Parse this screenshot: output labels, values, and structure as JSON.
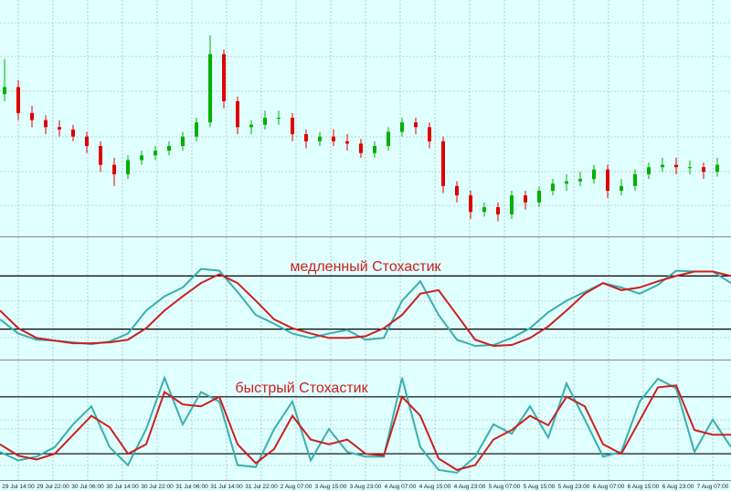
{
  "chart_data": [
    {
      "type": "candlestick",
      "up_color": "#00b000",
      "down_color": "#e00000",
      "ylim": [
        0,
        100
      ],
      "open": [
        60,
        63,
        52,
        49,
        46,
        45,
        42,
        38,
        30,
        26,
        32,
        34,
        36,
        38,
        42,
        48,
        77,
        57,
        46,
        47,
        50,
        50,
        43,
        40,
        42,
        40,
        39,
        35,
        38,
        44,
        48,
        46,
        40,
        21,
        17,
        10,
        12,
        9,
        17,
        14,
        19,
        22,
        23,
        24,
        28,
        19,
        21,
        26,
        29,
        30,
        29,
        29,
        27
      ],
      "high": [
        75,
        66,
        55,
        51,
        49,
        47,
        44,
        40,
        33,
        34,
        36,
        38,
        40,
        44,
        50,
        85,
        79,
        59,
        49,
        53,
        53,
        52,
        45,
        44,
        45,
        43,
        41,
        40,
        46,
        50,
        50,
        48,
        42,
        23,
        19,
        14,
        14,
        19,
        19,
        21,
        24,
        26,
        27,
        30,
        30,
        24,
        28,
        31,
        33,
        33,
        32,
        31,
        33
      ],
      "low": [
        57,
        49,
        46,
        43,
        42,
        40,
        35,
        27,
        21,
        24,
        30,
        32,
        34,
        36,
        40,
        46,
        54,
        43,
        43,
        45,
        47,
        40,
        37,
        38,
        38,
        36,
        33,
        33,
        36,
        42,
        43,
        37,
        18,
        14,
        7,
        8,
        6,
        7,
        11,
        12,
        17,
        19,
        21,
        22,
        16,
        17,
        19,
        24,
        27,
        26,
        26,
        24,
        25
      ],
      "close": [
        63,
        52,
        49,
        46,
        45,
        42,
        38,
        30,
        26,
        32,
        34,
        36,
        38,
        42,
        48,
        77,
        57,
        46,
        47,
        50,
        50,
        43,
        40,
        42,
        40,
        39,
        35,
        38,
        44,
        48,
        46,
        40,
        21,
        17,
        10,
        12,
        9,
        17,
        14,
        19,
        22,
        23,
        24,
        28,
        19,
        21,
        26,
        29,
        30,
        29,
        29,
        27,
        30
      ]
    },
    {
      "type": "line",
      "title": "медленный Стохастик",
      "ylim": [
        0,
        100
      ],
      "levels": [
        80,
        20
      ],
      "level_color": "#000000",
      "series": [
        {
          "color": "#3aafaf",
          "values": [
            31,
            15,
            8,
            7,
            5,
            3,
            6,
            15,
            41,
            57,
            67,
            88,
            86,
            62,
            36,
            26,
            15,
            10,
            15,
            19,
            8,
            10,
            52,
            74,
            36,
            8,
            1,
            2,
            10,
            21,
            39,
            52,
            62,
            72,
            67,
            60,
            70,
            86,
            85,
            85,
            72
          ]
        },
        {
          "color": "#cc2020",
          "values": [
            41,
            21,
            10,
            7,
            4,
            4,
            5,
            8,
            21,
            41,
            57,
            72,
            82,
            72,
            52,
            31,
            21,
            15,
            10,
            10,
            12,
            21,
            36,
            60,
            64,
            36,
            8,
            1,
            2,
            10,
            23,
            41,
            60,
            72,
            64,
            67,
            74,
            80,
            85,
            85,
            80
          ]
        }
      ]
    },
    {
      "type": "line",
      "title": "быстрый Стохастик",
      "ylim": [
        0,
        100
      ],
      "levels": [
        80,
        20
      ],
      "level_color": "#000000",
      "series": [
        {
          "color": "#3aafaf",
          "values": [
            22,
            13,
            17,
            27,
            51,
            70,
            27,
            8,
            46,
            100,
            51,
            85,
            75,
            8,
            6,
            46,
            75,
            13,
            46,
            22,
            17,
            17,
            100,
            27,
            3,
            0,
            17,
            51,
            41,
            70,
            37,
            94,
            56,
            17,
            22,
            75,
            99,
            89,
            22,
            56,
            27
          ]
        },
        {
          "color": "#cc2020",
          "values": [
            30,
            18,
            14,
            20,
            40,
            60,
            48,
            20,
            30,
            85,
            72,
            70,
            80,
            30,
            10,
            25,
            60,
            35,
            30,
            35,
            20,
            18,
            80,
            60,
            15,
            3,
            8,
            35,
            45,
            60,
            50,
            80,
            70,
            30,
            20,
            55,
            90,
            92,
            45,
            40,
            40
          ]
        }
      ],
      "x_labels": [
        "29 Jul 14:00",
        "29 Jul 22:00",
        "30 Jul 06:00",
        "30 Jul 14:00",
        "30 Jul 22:00",
        "31 Jul 06:00",
        "31 Jul 14:00",
        "31 Jul 22:00",
        "2 Aug 07:00",
        "3 Aug 15:00",
        "3 Aug 23:00",
        "4 Aug 07:00",
        "4 Aug 15:00",
        "4 Aug 23:00",
        "5 Aug 07:00",
        "5 Aug 15:00",
        "5 Aug 23:00",
        "6 Aug 07:00",
        "6 Aug 15:00",
        "6 Aug 23:00",
        "7 Aug 07:00"
      ]
    }
  ]
}
